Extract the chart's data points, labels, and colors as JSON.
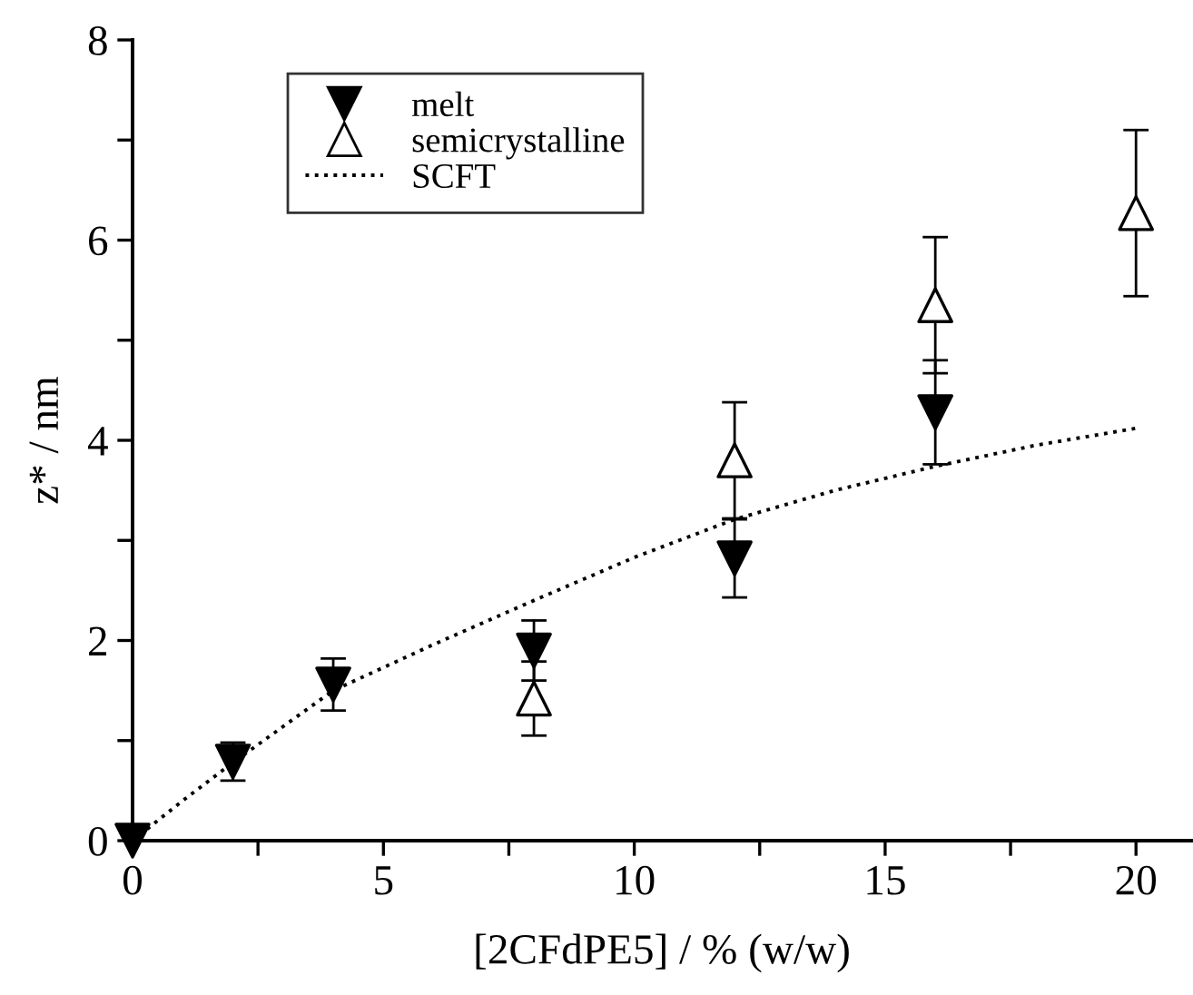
{
  "chart_data": {
    "type": "scatter",
    "xlabel": "[2CFdPE5] / % (w/w)",
    "ylabel": "z* / nm",
    "xlim": [
      0,
      21.1
    ],
    "ylim": [
      0,
      8
    ],
    "xticks": [
      0,
      {
        "value": 2.5,
        "label": null
      },
      5,
      {
        "value": 7.5,
        "label": null
      },
      10,
      {
        "value": 12.5,
        "label": null
      },
      15,
      {
        "value": 17.5,
        "label": null
      },
      20
    ],
    "yticks": [
      0,
      {
        "value": 1,
        "label": null
      },
      2,
      {
        "value": 3,
        "label": null
      },
      4,
      {
        "value": 5,
        "label": null
      },
      6,
      {
        "value": 7,
        "label": null
      },
      8
    ],
    "legend": "top left",
    "grid": false,
    "series": [
      {
        "name": "melt",
        "marker": "triangle_down",
        "color": "#000000",
        "x": [
          0,
          2,
          4,
          8,
          12,
          16
        ],
        "values": [
          0,
          0.79,
          1.56,
          1.9,
          2.82,
          4.28
        ],
        "errors": [
          null,
          0.19,
          0.26,
          0.3,
          0.39,
          0.52
        ]
      },
      {
        "name": "semicrystalline",
        "marker": "triangle",
        "color": "#000000",
        "x": [
          8,
          12,
          16,
          20
        ],
        "values": [
          1.42,
          3.8,
          5.35,
          6.27
        ],
        "errors": [
          0.37,
          0.58,
          0.68,
          0.83
        ]
      },
      {
        "name": "SCFT",
        "type": "line",
        "line_style": "dotted",
        "color": "#000000",
        "x": [
          0,
          1,
          2,
          4,
          6,
          8,
          10,
          12,
          14,
          16,
          18,
          20
        ],
        "values": [
          0,
          0.4,
          0.78,
          1.5,
          1.96,
          2.4,
          2.83,
          3.21,
          3.5,
          3.74,
          3.95,
          4.12
        ]
      }
    ]
  }
}
